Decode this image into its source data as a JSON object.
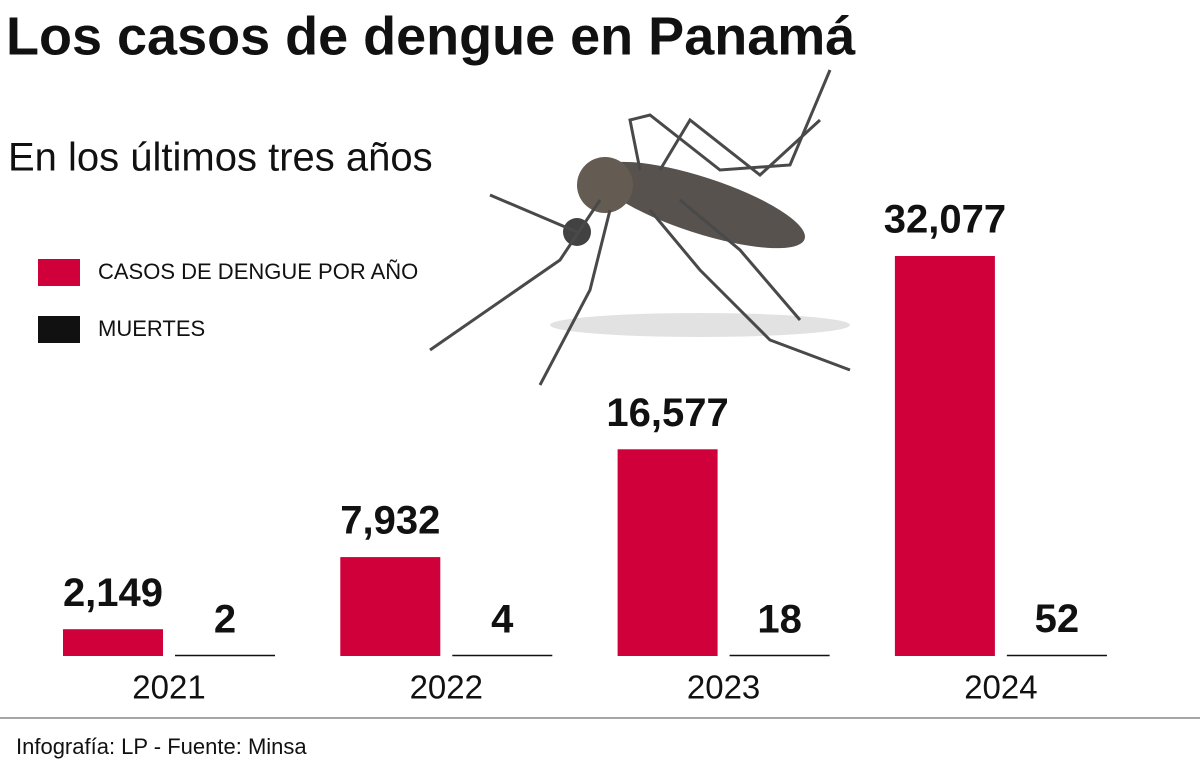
{
  "chart_data": {
    "type": "bar",
    "title": "Los casos de dengue en Panamá",
    "subtitle": "En los últimos tres años",
    "categories": [
      "2021",
      "2022",
      "2023",
      "2024"
    ],
    "series": [
      {
        "name": "CASOS DE DENGUE POR AÑO",
        "color": "#d0003a",
        "values": [
          2149,
          7932,
          16577,
          32077
        ],
        "value_labels": [
          "2,149",
          "7,932",
          "16,577",
          "32,077"
        ]
      },
      {
        "name": "MUERTES",
        "color": "#111111",
        "values": [
          2,
          4,
          18,
          52
        ]
      }
    ],
    "legend": "upper left",
    "source": "Infografía: LP - Fuente: Minsa"
  }
}
